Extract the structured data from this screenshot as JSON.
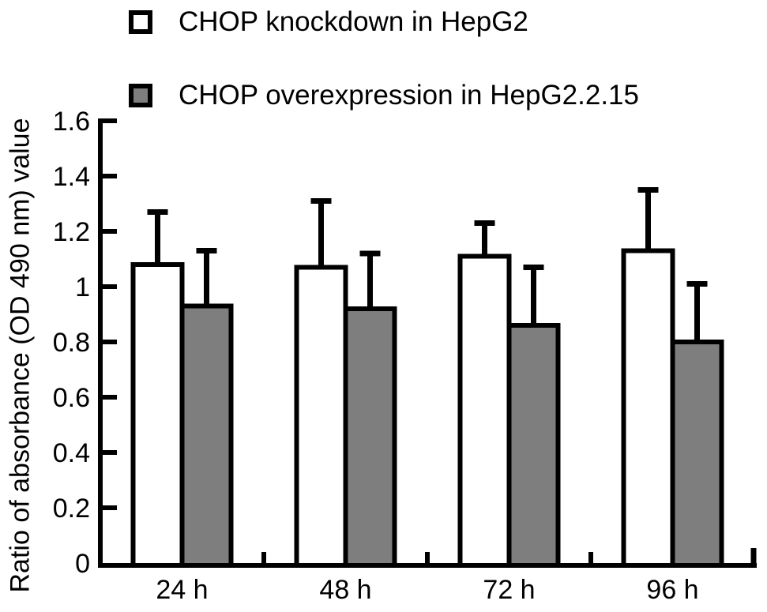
{
  "figure": {
    "background": "#ffffff",
    "axis_color": "#000000",
    "legend": [
      {
        "label": "CHOP knockdown in HepG2",
        "swatch": "#ffffff"
      },
      {
        "label": "CHOP overexpression in HepG2.2.15",
        "swatch": "#7e7e7e"
      }
    ],
    "y_axis_title": "Ratio of absorbance (OD 490 nm) value"
  },
  "chart_data": {
    "type": "bar",
    "categories": [
      "24 h",
      "48 h",
      "72 h",
      "96 h"
    ],
    "series": [
      {
        "name": "CHOP knockdown in HepG2",
        "key": "knockdown",
        "color": "#ffffff",
        "values": [
          1.08,
          1.07,
          1.11,
          1.13
        ],
        "errors": [
          0.19,
          0.24,
          0.12,
          0.22
        ]
      },
      {
        "name": "CHOP overexpression in HepG2.2.15",
        "key": "overexpression",
        "color": "#7e7e7e",
        "values": [
          0.93,
          0.92,
          0.86,
          0.8
        ],
        "errors": [
          0.2,
          0.2,
          0.21,
          0.21
        ]
      }
    ],
    "title": "",
    "xlabel": "",
    "ylabel": "Ratio of absorbance (OD 490 nm) value",
    "ylim": [
      0,
      1.6
    ],
    "ytick_step": 0.2,
    "ytick_labels": [
      "0",
      "0.2",
      "0.4",
      "0.6",
      "0.8",
      "1",
      "1.2",
      "1.4",
      "1.6"
    ],
    "error_bars": "upper-only",
    "grid": false,
    "legend_position": "top-left"
  }
}
